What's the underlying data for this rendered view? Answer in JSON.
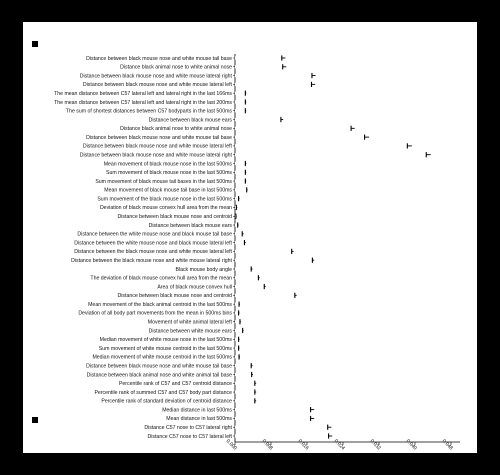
{
  "chart_data": {
    "type": "bar",
    "orientation": "horizontal",
    "title": "",
    "xlabel": "",
    "ylabel": "",
    "xlim": [
      0,
      0.05
    ],
    "xticks": [
      0.0,
      0.008,
      0.016,
      0.024,
      0.032,
      0.04,
      0.048
    ],
    "tick_labels": [
      "0.000",
      "0.008",
      "0.016",
      "0.024",
      "0.032",
      "0.040",
      "0.048"
    ],
    "grid": false,
    "legend": "none",
    "categories": [
      "Distance between black mouse nose and white mouse tail base",
      "Distance black animal nose to white animal nose",
      "Distance between black mouse nose and white mouse lateral right",
      "Distance between black mouse nose and white mouse lateral left",
      "The mean distance between C57 lateral left and lateral right in the last 166ms",
      "The mean distance between C57 lateral left and lateral right in the last 200ms",
      "The sum of shortest distances between C57 bodyparts in the last 500ms",
      "Distance between black mouse ears",
      "Distance black animal nose to white animal nose",
      "Distance between black mouse nose and white mouse tail base",
      "Distance between black mouse nose and white mouse lateral left",
      "Distance between black mouse nose and white mouse lateral right",
      "Mean movement of black mouse nose in the last 500ms",
      "Sum movement of black mouse nose in the last 500ms",
      "Sum movement of black mouse tail bases in the last 500ms",
      "Mean movement of black mouse tail base in last 500ms",
      "Sum movement of the black mouse nose in the last 500ms",
      "Deviation of black mouse convex hull area from the mean",
      "Distance between black mouse nose and centroid",
      "Distance between black mouse ears",
      "Distance between the white mouse nose and black mouse tail base",
      "Distance between the white mouse nose and black mouse lateral left",
      "Distance between the black mouse nose and white mouse lateral left",
      "Distance between the black mouse nose and white mouse lateral right",
      "Black mouse body angle",
      "The deviation of black mouse convex hull area from the mean",
      "Area of black mouse convex hull",
      "Distance between black mouse nose and centroid",
      "Mean movement of the black animal centroid in the last 500ms",
      "Deviation of all body part movements from the mean in 500ms bins",
      "Movement of white animal lateral left",
      "Distance between white mouse ears",
      "Median movement of white mouse nose in the last 500ms",
      "Sum movement of white mouse centroid in the last 500ms",
      "Median movement of white mouse centroid in the last 500ms",
      "Distance between black mouse nose and white mouse tail base",
      "Distance between black animal nose and white animal tail base",
      "Percentile rank of C57 and C57 centroid distance",
      "Percentile rank of summed C57 and C57 body part distance",
      "Percentile rank of standard deviation of centroid distance",
      "Median distance in last 500ms",
      "Mean distance in last 500ms",
      "Distance C57 nose to C57 lateral right",
      "Distance C57 nose to C57 lateral left"
    ],
    "values": [
      0.0104,
      0.0106,
      0.0171,
      0.017,
      0.0023,
      0.0023,
      0.0023,
      0.0102,
      0.0258,
      0.0288,
      0.0383,
      0.0425,
      0.0023,
      0.0023,
      0.0023,
      0.0026,
      0.0008,
      0.0003,
      0.0002,
      0.0006,
      0.0016,
      0.0021,
      0.0126,
      0.0172,
      0.0036,
      0.0052,
      0.0065,
      0.0133,
      0.0009,
      0.0008,
      0.0011,
      0.0017,
      0.0008,
      0.0008,
      0.0009,
      0.0036,
      0.0037,
      0.0044,
      0.0044,
      0.0044,
      0.0168,
      0.0168,
      0.0206,
      0.0208
    ],
    "errors": [
      0.0008,
      0.0008,
      0.0008,
      0.0008,
      0.0002,
      0.0002,
      0.0002,
      0.0005,
      0.0008,
      0.001,
      0.001,
      0.001,
      0.0002,
      0.0002,
      0.0002,
      0.0002,
      0.0002,
      0.0002,
      0.0002,
      0.0002,
      0.0003,
      0.0003,
      0.0004,
      0.0004,
      0.0003,
      0.0003,
      0.0003,
      0.0004,
      0.0002,
      0.0002,
      0.0002,
      0.0002,
      0.0002,
      0.0002,
      0.0002,
      0.0003,
      0.0003,
      0.0003,
      0.0003,
      0.0003,
      0.0008,
      0.0008,
      0.0008,
      0.0008
    ]
  }
}
